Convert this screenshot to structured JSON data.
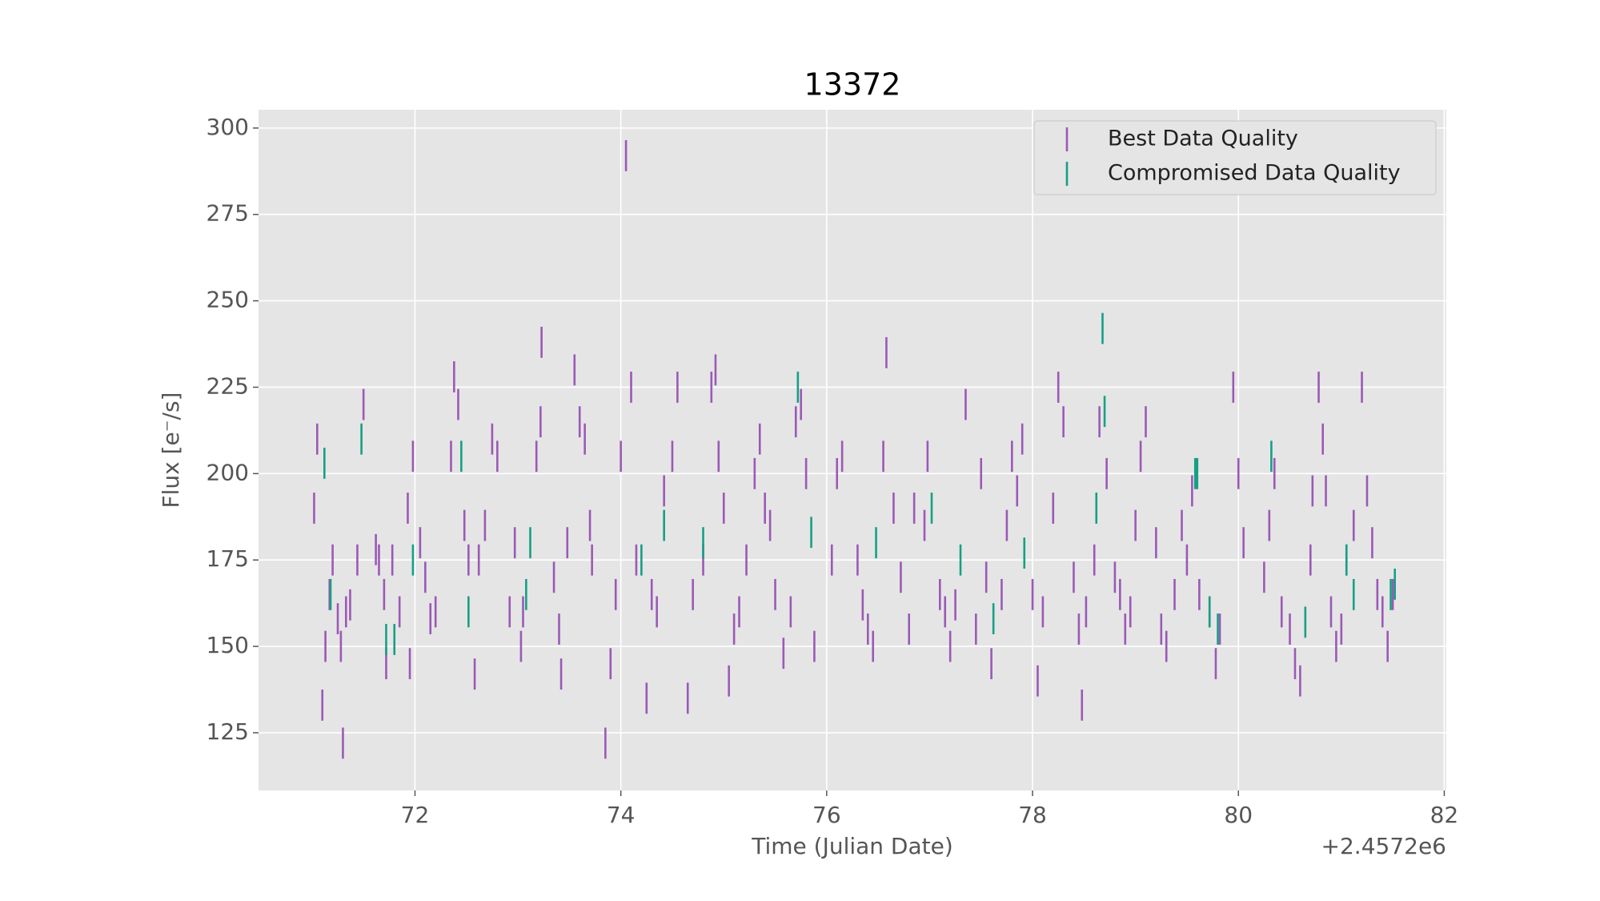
{
  "chart_data": {
    "type": "errorbar",
    "title": "13372",
    "x_label": "Time (Julian Date)",
    "y_label": "Flux [e⁻/s]",
    "x_offset_label": "+2.4572e6",
    "xlim": [
      70.48,
      82.02
    ],
    "xticks": [
      72,
      74,
      76,
      78,
      80,
      82
    ],
    "ylim": [
      108.3,
      305.3
    ],
    "yticks": [
      125,
      150,
      175,
      200,
      225,
      250,
      275,
      300
    ],
    "grid": true,
    "legend": "upper right",
    "series": [
      {
        "name": "Best Data Quality",
        "color": "#9b59b6",
        "yerr": 4.5,
        "x": [
          71.02,
          71.05,
          71.1,
          71.13,
          71.17,
          71.2,
          71.25,
          71.28,
          71.3,
          71.33,
          71.37,
          71.44,
          71.5,
          71.62,
          71.65,
          71.7,
          71.72,
          71.78,
          71.85,
          71.93,
          71.95,
          71.98,
          72.05,
          72.1,
          72.15,
          72.2,
          72.35,
          72.38,
          72.42,
          72.48,
          72.52,
          72.58,
          72.62,
          72.68,
          72.75,
          72.8,
          72.92,
          72.97,
          73.03,
          73.05,
          73.18,
          73.22,
          73.23,
          73.35,
          73.4,
          73.42,
          73.48,
          73.55,
          73.6,
          73.65,
          73.7,
          73.72,
          73.85,
          73.9,
          73.95,
          74.0,
          74.05,
          74.1,
          74.15,
          74.25,
          74.3,
          74.35,
          74.42,
          74.5,
          74.55,
          74.65,
          74.7,
          74.8,
          74.88,
          74.92,
          74.95,
          75.0,
          75.05,
          75.1,
          75.15,
          75.22,
          75.3,
          75.35,
          75.4,
          75.45,
          75.5,
          75.58,
          75.65,
          75.7,
          75.75,
          75.8,
          75.88,
          76.05,
          76.1,
          76.15,
          76.3,
          76.35,
          76.4,
          76.45,
          76.55,
          76.58,
          76.65,
          76.72,
          76.8,
          76.85,
          76.95,
          76.98,
          77.1,
          77.15,
          77.2,
          77.25,
          77.35,
          77.45,
          77.5,
          77.55,
          77.6,
          77.7,
          77.75,
          77.8,
          77.85,
          77.9,
          78.0,
          78.05,
          78.1,
          78.2,
          78.25,
          78.3,
          78.4,
          78.45,
          78.48,
          78.52,
          78.6,
          78.65,
          78.72,
          78.8,
          78.85,
          78.9,
          78.95,
          79.0,
          79.05,
          79.1,
          79.2,
          79.25,
          79.3,
          79.38,
          79.45,
          79.5,
          79.55,
          79.62,
          79.72,
          79.78,
          79.82,
          79.95,
          80.0,
          80.05,
          80.25,
          80.3,
          80.35,
          80.42,
          80.5,
          80.55,
          80.6,
          80.7,
          80.72,
          80.78,
          80.82,
          80.85,
          80.9,
          80.95,
          81.0,
          81.05,
          81.12,
          81.2,
          81.25,
          81.3,
          81.35,
          81.4,
          81.45,
          81.5
        ],
        "values": [
          190,
          210,
          133,
          150,
          165,
          175,
          158,
          150,
          122,
          160,
          162,
          175,
          220,
          178,
          175,
          165,
          145,
          175,
          160,
          190,
          145,
          205,
          180,
          170,
          158,
          160,
          205,
          228,
          220,
          185,
          175,
          142,
          175,
          185,
          210,
          205,
          160,
          180,
          150,
          160,
          205,
          215,
          238,
          170,
          155,
          142,
          180,
          230,
          215,
          210,
          185,
          175,
          122,
          145,
          165,
          205,
          292,
          225,
          175,
          135,
          165,
          160,
          195,
          205,
          225,
          135,
          165,
          175,
          225,
          230,
          205,
          190,
          140,
          155,
          160,
          175,
          200,
          210,
          190,
          185,
          165,
          148,
          160,
          215,
          220,
          200,
          150,
          175,
          200,
          205,
          175,
          162,
          155,
          150,
          205,
          235,
          190,
          170,
          155,
          190,
          185,
          205,
          165,
          160,
          150,
          162,
          220,
          155,
          200,
          170,
          145,
          165,
          185,
          205,
          195,
          210,
          165,
          140,
          160,
          190,
          225,
          215,
          170,
          155,
          133,
          160,
          175,
          215,
          200,
          170,
          165,
          155,
          160,
          185,
          205,
          215,
          180,
          155,
          150,
          165,
          185,
          175,
          195,
          165,
          160,
          145,
          155,
          225,
          200,
          180,
          170,
          185,
          200,
          160,
          155,
          145,
          140,
          175,
          195,
          225,
          210,
          195,
          160,
          150,
          155,
          175,
          185,
          225,
          195,
          180,
          165,
          160,
          150,
          165
        ]
      },
      {
        "name": "Compromised Data Quality",
        "color": "#16a085",
        "yerr": 4.5,
        "x": [
          71.12,
          71.18,
          71.48,
          71.72,
          71.8,
          71.98,
          72.45,
          72.52,
          73.08,
          73.12,
          74.2,
          74.42,
          74.8,
          75.72,
          75.85,
          76.48,
          77.02,
          77.3,
          77.62,
          77.92,
          78.62,
          78.68,
          78.7,
          79.58,
          79.6,
          79.72,
          79.8,
          80.32,
          80.65,
          81.05,
          81.12,
          81.48,
          81.52
        ],
        "values": [
          203,
          165,
          210,
          152,
          152,
          175,
          205,
          160,
          165,
          180,
          175,
          185,
          180,
          225,
          183,
          180,
          190,
          175,
          158,
          177,
          190,
          242,
          218,
          200,
          200,
          160,
          155,
          205,
          157,
          175,
          165,
          165,
          168
        ]
      }
    ]
  }
}
